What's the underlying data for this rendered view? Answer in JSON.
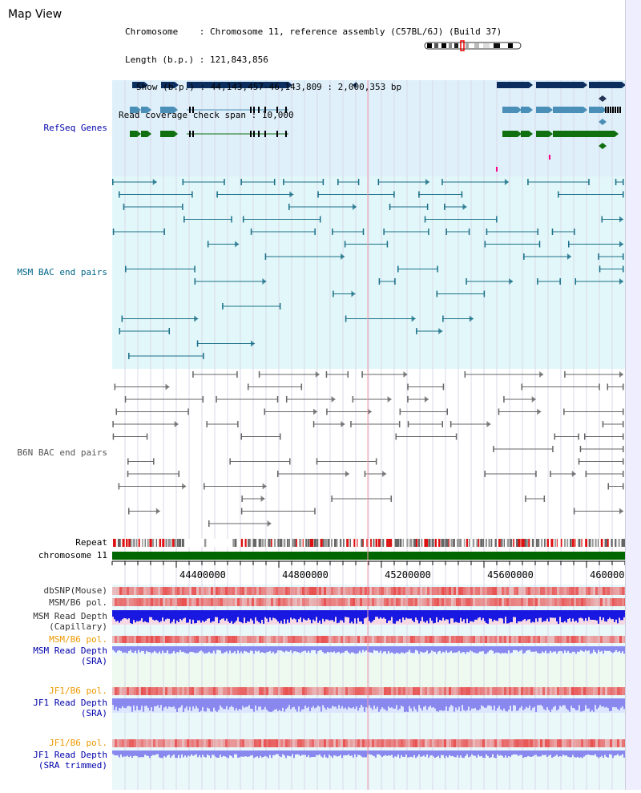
{
  "page": {
    "title": "Map View"
  },
  "header": {
    "chromosome_key": "Chromosome",
    "chromosome_value": "Chromosome 11, reference assembly (C57BL/6J) (Build 37)",
    "length_key": "Length (b.p.)",
    "length_value": "121,843,856",
    "show_key": "Show (b.p.)",
    "show_value": "44,143,457-46,143,809 : 2,000,353 bp",
    "span_key": "Read coverage check span",
    "span_value": "10,000"
  },
  "tracks": {
    "refseq": {
      "label": "RefSeq Genes",
      "color": "#0000aa"
    },
    "msm_bac": {
      "label": "MSM BAC end pairs",
      "color": "#006688"
    },
    "b6n_bac": {
      "label": "B6N BAC end pairs",
      "color": "#555555"
    },
    "repeat": {
      "label": "Repeat",
      "color": "#000000"
    },
    "chromosome": {
      "label": "chromosome 11",
      "color": "#000000"
    },
    "dbsnp": {
      "label": "dbSNP(Mouse)",
      "color": "#333333"
    },
    "msm_b6_pol": {
      "label": "MSM/B6 pol.",
      "color": "#333333"
    },
    "msm_depth_cap_1": {
      "label": "MSM Read Depth",
      "color": "#333333"
    },
    "msm_depth_cap_2": {
      "label": "(Capillary)",
      "color": "#333333"
    },
    "msm_b6_pol_sra": {
      "label": "MSM/B6 pol.",
      "color": "#ee9900"
    },
    "msm_depth_sra_1": {
      "label": "MSM Read Depth",
      "color": "#0000aa"
    },
    "msm_depth_sra_2": {
      "label": "(SRA)",
      "color": "#0000aa"
    },
    "jf1_b6_pol": {
      "label": "JF1/B6 pol.",
      "color": "#ee9900"
    },
    "jf1_depth_sra_1": {
      "label": "JF1 Read Depth",
      "color": "#0000aa"
    },
    "jf1_depth_sra_2": {
      "label": "(SRA)",
      "color": "#0000aa"
    },
    "jf1_b6_pol_trim": {
      "label": "JF1/B6 pol.",
      "color": "#ee9900"
    },
    "jf1_depth_trim_1": {
      "label": "JF1 Read Depth",
      "color": "#0000aa"
    },
    "jf1_depth_trim_2": {
      "label": "(SRA trimmed)",
      "color": "#0000aa"
    }
  },
  "axis": {
    "ticks": [
      "44400000",
      "44800000",
      "45200000",
      "45600000",
      "46000000"
    ]
  },
  "colors": {
    "refseq_bg": "#dff0fa",
    "msm_bg": "#e2f7f9",
    "panel_bg": "#eaf8fa",
    "gene_dark": "#0b2e5e",
    "gene_mid": "#4a8fb8",
    "gene_green": "#107010",
    "msm_line": "#1a6f88",
    "b6n_line": "#666666",
    "chrom_bar": "#006600",
    "repeat_red": "#dd1111",
    "repeat_grey": "#666666",
    "snp_red": "#e85050",
    "depth_blue": "#1818e0",
    "depth_light": "#8888ee"
  }
}
